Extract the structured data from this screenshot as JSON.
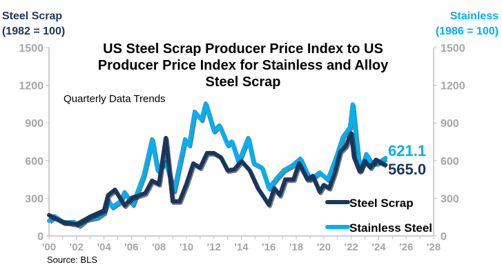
{
  "chart_data": {
    "type": "line",
    "title": "US Steel Scrap Producer Price Index to US Producer Price Index for Stainless and Alloy Steel Scrap",
    "subtitle": "Quarterly Data Trends",
    "ylabel_left": "Steel Scrap\n(1982 = 100)",
    "ylabel_right": "Stainless\n(1986 = 100)",
    "source": "Source: BLS",
    "xlim": [
      2000,
      2028
    ],
    "ylim": [
      0,
      1500
    ],
    "yticks": [
      0,
      300,
      600,
      900,
      1200,
      1500
    ],
    "xticks": [
      "'00",
      "'02",
      "'04",
      "'06",
      "'08",
      "'10",
      "'12",
      "'14",
      "'16",
      "'18",
      "'20",
      "'22",
      "'24",
      "'26",
      "'28"
    ],
    "grid": false,
    "legend": "bottom-right",
    "series": [
      {
        "name": "Steel Scrap",
        "color": "#1b365d",
        "end_label": "565.0",
        "x": [
          2000,
          2001,
          2002,
          2003,
          2004,
          2004.3,
          2004.8,
          2005.5,
          2006,
          2007,
          2007.5,
          2008,
          2008.5,
          2009,
          2009.5,
          2010,
          2010.5,
          2011,
          2011.5,
          2012,
          2012.5,
          2013,
          2013.5,
          2014,
          2014.6,
          2015.2,
          2016,
          2016.4,
          2016.8,
          2017.2,
          2017.8,
          2018.2,
          2018.8,
          2019.2,
          2019.7,
          2020,
          2020.4,
          2020.8,
          2021.2,
          2021.6,
          2022,
          2022.2,
          2022.6,
          2023,
          2023.4,
          2023.8,
          2024.5
        ],
        "values": [
          166,
          112,
          93,
          154,
          203,
          324,
          368,
          242,
          302,
          340,
          440,
          412,
          780,
          275,
          275,
          412,
          577,
          544,
          660,
          660,
          627,
          522,
          530,
          598,
          524,
          380,
          249,
          380,
          325,
          450,
          450,
          579,
          450,
          478,
          352,
          406,
          380,
          505,
          670,
          716,
          817,
          627,
          516,
          598,
          544,
          607,
          565
        ]
      },
      {
        "name": "Stainless Steel",
        "color": "#00b0f0",
        "end_label": "621.1",
        "x": [
          2000,
          2000.4,
          2001.1,
          2001.8,
          2002.2,
          2002.7,
          2003.5,
          2004,
          2004.3,
          2004.6,
          2005.2,
          2005.5,
          2006.1,
          2006.9,
          2007.5,
          2007.9,
          2008.5,
          2009.1,
          2009.9,
          2010.2,
          2010.6,
          2011.1,
          2011.4,
          2012,
          2012.4,
          2013,
          2013.3,
          2013.8,
          2014.1,
          2014.5,
          2014.9,
          2015.5,
          2016,
          2016.6,
          2017.1,
          2017.7,
          2018.3,
          2019,
          2019.7,
          2020.3,
          2020.9,
          2021.4,
          2021.9,
          2022.1,
          2022.5,
          2022.7,
          2023.1,
          2023.5,
          2023.9,
          2024.5
        ],
        "values": [
          120,
          157,
          106,
          112,
          84,
          130,
          148,
          185,
          286,
          231,
          276,
          349,
          250,
          487,
          770,
          524,
          588,
          360,
          770,
          725,
          990,
          926,
          1055,
          835,
          881,
          725,
          752,
          588,
          671,
          780,
          579,
          544,
          380,
          463,
          524,
          561,
          616,
          450,
          505,
          450,
          627,
          791,
          864,
          1047,
          627,
          524,
          652,
          579,
          579,
          621.1
        ]
      }
    ]
  }
}
